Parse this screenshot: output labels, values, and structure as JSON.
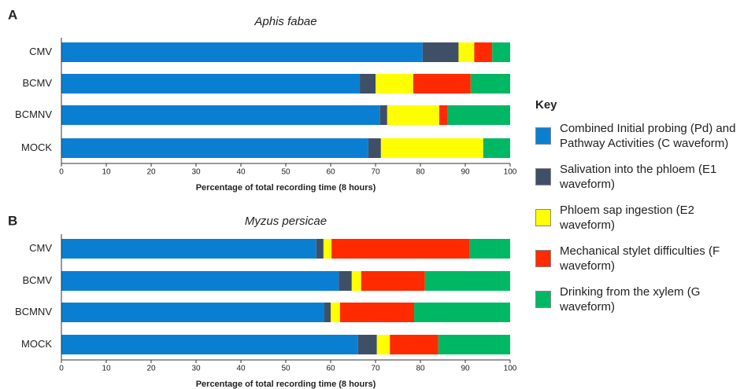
{
  "chart_data": [
    {
      "type": "stacked-bar",
      "label": "A",
      "title": "Aphis fabae",
      "xlabel": "Percentage of total recording time (8 hours)",
      "legend_title": "Key",
      "categories": [
        "CMV",
        "BCMV",
        "BCMNV",
        "MOCK"
      ],
      "xlim": [
        0,
        100
      ],
      "xticks": [
        0,
        10,
        20,
        30,
        40,
        50,
        60,
        70,
        80,
        90,
        100
      ],
      "series": [
        {
          "name": "Combined Initial probing (Pd) and Pathway Activities (C waveform)",
          "color": "#0a7fd1",
          "values": [
            80.5,
            66.5,
            71,
            68.4
          ]
        },
        {
          "name": "Salivation into the phloem (E1 waveform)",
          "color": "#3f4f66",
          "values": [
            8,
            3.5,
            1.6,
            2.8
          ]
        },
        {
          "name": "Phloem sap ingestion (E2 waveform)",
          "color": "#ffff00",
          "values": [
            3.5,
            8.4,
            11.6,
            22.8
          ]
        },
        {
          "name": "Mechanical stylet difficulties (F waveform)",
          "color": "#ff2a00",
          "values": [
            4,
            12.8,
            1.9,
            0
          ]
        },
        {
          "name": "Drinking from the xylem (G waveform)",
          "color": "#00b863",
          "values": [
            4,
            8.8,
            13.9,
            6
          ]
        }
      ]
    },
    {
      "type": "stacked-bar",
      "label": "B",
      "title": "Myzus persicae",
      "xlabel": "Percentage of total recording time (8 hours)",
      "categories": [
        "CMV",
        "BCMV",
        "BCMNV",
        "MOCK"
      ],
      "xlim": [
        0,
        100
      ],
      "xticks": [
        0,
        10,
        20,
        30,
        40,
        50,
        60,
        70,
        80,
        90,
        100
      ],
      "series": [
        {
          "values": [
            56.8,
            61.8,
            58.6,
            66.1
          ]
        },
        {
          "values": [
            1.6,
            2.9,
            1.4,
            4.2
          ]
        },
        {
          "values": [
            1.8,
            2.1,
            2.1,
            2.9
          ]
        },
        {
          "values": [
            30.8,
            14.2,
            16.5,
            10.8
          ]
        },
        {
          "values": [
            9,
            19,
            21.4,
            16
          ]
        }
      ]
    }
  ]
}
